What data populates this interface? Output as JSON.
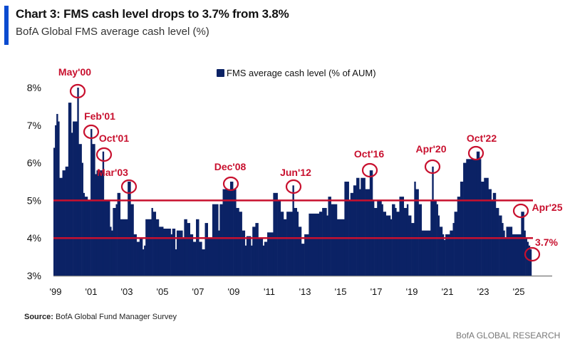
{
  "header": {
    "title": "Chart 3: FMS cash level drops to 3.7% from 3.8%",
    "subtitle": "BofA Global FMS average cash level (%)",
    "accent_color": "#0a4bd0"
  },
  "footer": {
    "source_label": "Source:",
    "source_text": "BofA Global Fund Manager Survey",
    "brand": "BofA GLOBAL RESEARCH"
  },
  "chart_data": {
    "type": "area",
    "title": "",
    "xlabel": "",
    "ylabel": "",
    "ylim": [
      3,
      8
    ],
    "yticks": [
      "3%",
      "4%",
      "5%",
      "6%",
      "7%",
      "8%"
    ],
    "ytick_values": [
      3,
      4,
      5,
      6,
      7,
      8
    ],
    "xticks": [
      "'99",
      "'01",
      "'03",
      "'05",
      "'07",
      "'09",
      "'11",
      "'13",
      "'15",
      "'17",
      "'19",
      "'21",
      "'23",
      "'25"
    ],
    "xtick_years": [
      1999,
      2001,
      2003,
      2005,
      2007,
      2009,
      2011,
      2013,
      2015,
      2017,
      2019,
      2021,
      2023,
      2025
    ],
    "legend": {
      "position": "top",
      "entries": [
        "FMS average cash level (% of AUM)"
      ]
    },
    "grid": false,
    "colors": {
      "bars": "#0b2265",
      "reference_lines": "#c8102e",
      "annotations": "#c8102e"
    },
    "reference_lines": [
      5,
      4
    ],
    "series": [
      {
        "name": "FMS average cash level (% of AUM)",
        "x": [
          "1999-01",
          "1999-02",
          "1999-03",
          "1999-04",
          "1999-05",
          "1999-07",
          "1999-09",
          "1999-11",
          "2000-01",
          "2000-02",
          "2000-05",
          "2000-06",
          "2000-08",
          "2000-09",
          "2000-10",
          "2000-12",
          "2001-02",
          "2001-03",
          "2001-05",
          "2001-06",
          "2001-10",
          "2001-11",
          "2002-03",
          "2002-04",
          "2002-05",
          "2002-07",
          "2002-08",
          "2002-10",
          "2003-03",
          "2003-05",
          "2003-07",
          "2003-09",
          "2003-11",
          "2004-01",
          "2004-02",
          "2004-03",
          "2004-07",
          "2004-08",
          "2004-10",
          "2004-12",
          "2005-03",
          "2005-08",
          "2005-09",
          "2005-11",
          "2005-12",
          "2006-04",
          "2006-05",
          "2006-07",
          "2006-09",
          "2006-11",
          "2007-01",
          "2007-03",
          "2007-05",
          "2007-07",
          "2007-09",
          "2007-12",
          "2008-04",
          "2008-05",
          "2008-07",
          "2008-12",
          "2009-02",
          "2009-04",
          "2009-06",
          "2009-08",
          "2009-10",
          "2009-11",
          "2010-02",
          "2010-03",
          "2010-05",
          "2010-07",
          "2010-10",
          "2010-11",
          "2011-01",
          "2011-05",
          "2011-08",
          "2011-10",
          "2011-12",
          "2012-02",
          "2012-06",
          "2012-07",
          "2012-09",
          "2012-10",
          "2012-12",
          "2013-02",
          "2013-05",
          "2013-12",
          "2014-02",
          "2014-05",
          "2014-06",
          "2014-08",
          "2014-12",
          "2015-05",
          "2015-08",
          "2015-09",
          "2015-11",
          "2016-01",
          "2016-03",
          "2016-04",
          "2016-07",
          "2016-10",
          "2016-12",
          "2017-01",
          "2017-03",
          "2017-06",
          "2017-07",
          "2017-09",
          "2017-12",
          "2018-01",
          "2018-03",
          "2018-04",
          "2018-06",
          "2018-09",
          "2018-11",
          "2018-12",
          "2019-02",
          "2019-04",
          "2019-05",
          "2019-07",
          "2019-09",
          "2020-03",
          "2020-04",
          "2020-05",
          "2020-07",
          "2020-08",
          "2020-09",
          "2020-11",
          "2020-12",
          "2021-01",
          "2021-04",
          "2021-06",
          "2021-07",
          "2021-09",
          "2021-11",
          "2022-01",
          "2022-03",
          "2022-10",
          "2022-12",
          "2023-01",
          "2023-03",
          "2023-06",
          "2023-08",
          "2023-09",
          "2023-11",
          "2024-01",
          "2024-03",
          "2024-04",
          "2024-05",
          "2024-06",
          "2024-10",
          "2025-04",
          "2025-06",
          "2025-07",
          "2025-08",
          "2025-09",
          "2025-10"
        ],
        "values": [
          6.4,
          7.0,
          7.3,
          7.1,
          5.6,
          5.8,
          5.9,
          7.6,
          6.8,
          7.1,
          8.0,
          6.5,
          6.0,
          5.2,
          5.1,
          5.0,
          6.9,
          6.5,
          5.7,
          5.8,
          6.3,
          5.0,
          4.3,
          4.2,
          4.8,
          4.9,
          5.2,
          4.5,
          5.5,
          4.9,
          4.1,
          3.9,
          4.0,
          3.7,
          3.8,
          4.5,
          4.8,
          4.7,
          4.5,
          4.3,
          4.25,
          4.1,
          4.25,
          3.7,
          4.2,
          4.0,
          4.5,
          4.4,
          4.1,
          3.9,
          4.5,
          3.9,
          3.7,
          4.4,
          4.0,
          4.9,
          4.2,
          4.9,
          5.3,
          5.5,
          5.3,
          4.8,
          4.7,
          4.2,
          3.8,
          4.05,
          3.8,
          4.3,
          4.4,
          4.0,
          3.8,
          3.9,
          4.15,
          5.2,
          5.0,
          4.7,
          4.5,
          4.7,
          5.4,
          4.8,
          4.7,
          4.3,
          3.85,
          4.1,
          4.65,
          4.7,
          4.8,
          4.6,
          5.1,
          4.9,
          4.5,
          5.5,
          5.0,
          5.2,
          5.4,
          5.6,
          5.3,
          5.6,
          5.3,
          5.8,
          5.0,
          4.8,
          5.0,
          4.9,
          4.7,
          4.6,
          4.5,
          4.9,
          4.8,
          4.7,
          5.1,
          4.8,
          4.9,
          4.6,
          4.4,
          5.5,
          5.3,
          4.9,
          4.2,
          5.0,
          5.9,
          5.0,
          4.9,
          4.6,
          4.3,
          4.1,
          3.95,
          4.1,
          4.2,
          4.4,
          4.7,
          5.1,
          5.5,
          6.0,
          6.1,
          6.3,
          6.1,
          5.5,
          5.6,
          5.3,
          5.0,
          5.2,
          4.8,
          4.6,
          4.4,
          4.2,
          4.0,
          4.3,
          4.1,
          4.7,
          4.2,
          4.0,
          3.9,
          3.8,
          3.7
        ]
      }
    ],
    "annotations": [
      {
        "label": "May'00",
        "date": "2000-05",
        "value": 8.0
      },
      {
        "label": "Feb'01",
        "date": "2001-02",
        "value": 6.9
      },
      {
        "label": "Oct'01",
        "date": "2001-10",
        "value": 6.3
      },
      {
        "label": "Mar'03",
        "date": "2003-03",
        "value": 5.5
      },
      {
        "label": "Dec'08",
        "date": "2008-12",
        "value": 5.5
      },
      {
        "label": "Jun'12",
        "date": "2012-06",
        "value": 5.4
      },
      {
        "label": "Oct'16",
        "date": "2016-10",
        "value": 5.8
      },
      {
        "label": "Apr'20",
        "date": "2020-04",
        "value": 5.9
      },
      {
        "label": "Oct'22",
        "date": "2022-10",
        "value": 6.3
      },
      {
        "label": "Apr'25",
        "date": "2025-04",
        "value": 4.7
      },
      {
        "label": "3.7%",
        "date": "2025-10",
        "value": 3.7
      }
    ]
  }
}
